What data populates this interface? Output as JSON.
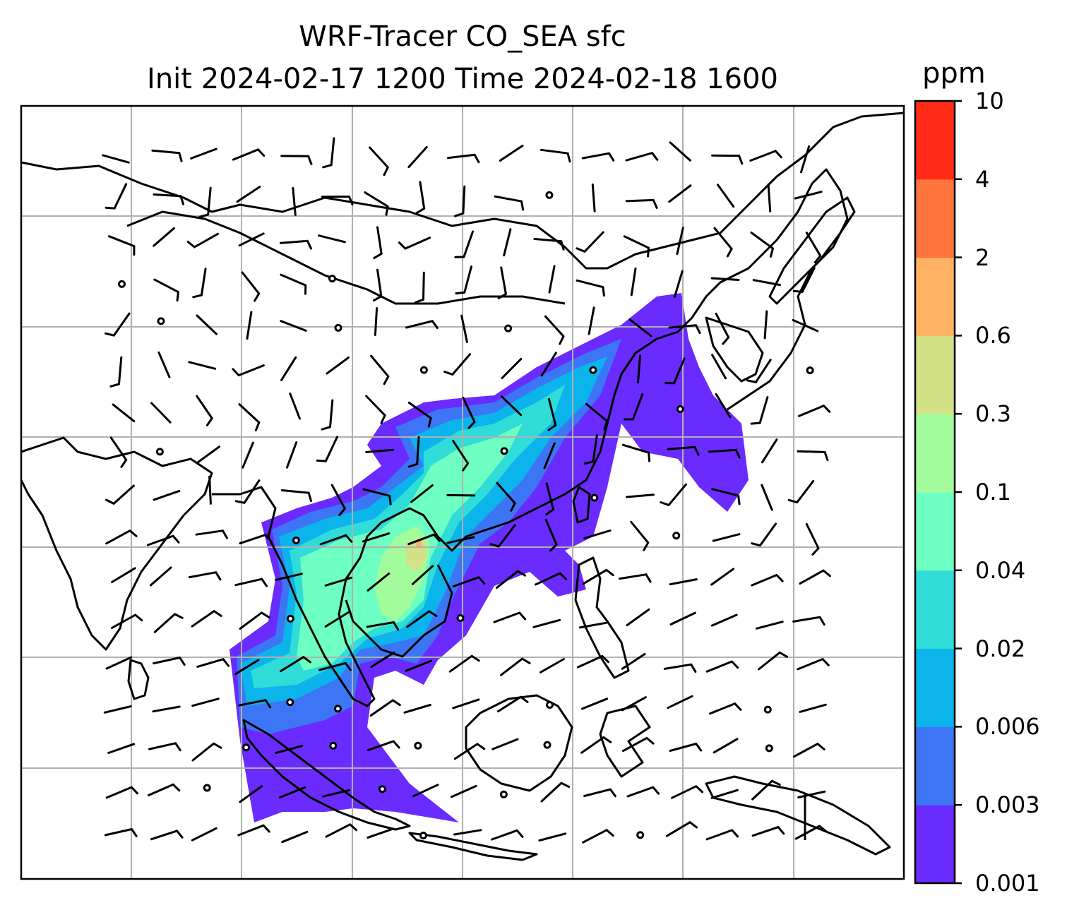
{
  "title": {
    "line1": "WRF-Tracer CO_SEA sfc",
    "line2": "Init 2024-02-17 1200 Time 2024-02-18 1600"
  },
  "colorbar": {
    "unit": "ppm",
    "levels": [
      "0.001",
      "0.003",
      "0.006",
      "0.02",
      "0.04",
      "0.1",
      "0.3",
      "0.6",
      "2",
      "4",
      "10"
    ],
    "colors": [
      "#6a2bff",
      "#3c76f4",
      "#0bb4ea",
      "#2fdcd8",
      "#6effc2",
      "#a2fc9c",
      "#d3e187",
      "#ffb263",
      "#ff743c",
      "#ff2b16"
    ]
  },
  "map": {
    "region": "Southeast Asia / South China",
    "gridlines": true,
    "coastlines": true,
    "wind_barbs": true,
    "calm_marker": "circle"
  }
}
